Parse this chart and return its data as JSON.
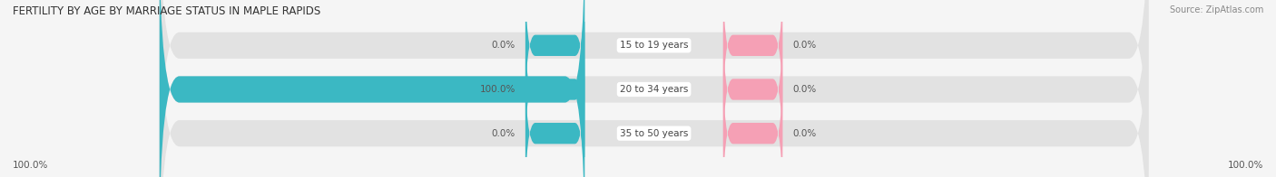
{
  "title": "FERTILITY BY AGE BY MARRIAGE STATUS IN MAPLE RAPIDS",
  "source": "Source: ZipAtlas.com",
  "categories": [
    "15 to 19 years",
    "20 to 34 years",
    "35 to 50 years"
  ],
  "married_values": [
    0.0,
    100.0,
    0.0
  ],
  "unmarried_values": [
    0.0,
    0.0,
    0.0
  ],
  "married_color": "#3bb8c3",
  "unmarried_color": "#f5a0b5",
  "bar_bg_color": "#e2e2e2",
  "bar_height": 0.6,
  "max_value": 100.0,
  "left_axis_label": "100.0%",
  "right_axis_label": "100.0%",
  "title_fontsize": 8.5,
  "source_fontsize": 7,
  "value_label_fontsize": 7.5,
  "cat_label_fontsize": 7.5,
  "legend_fontsize": 7.5,
  "background_color": "#f5f5f5",
  "center_label_color": "#444444",
  "value_label_color": "#555555",
  "axis_label_color": "#555555"
}
